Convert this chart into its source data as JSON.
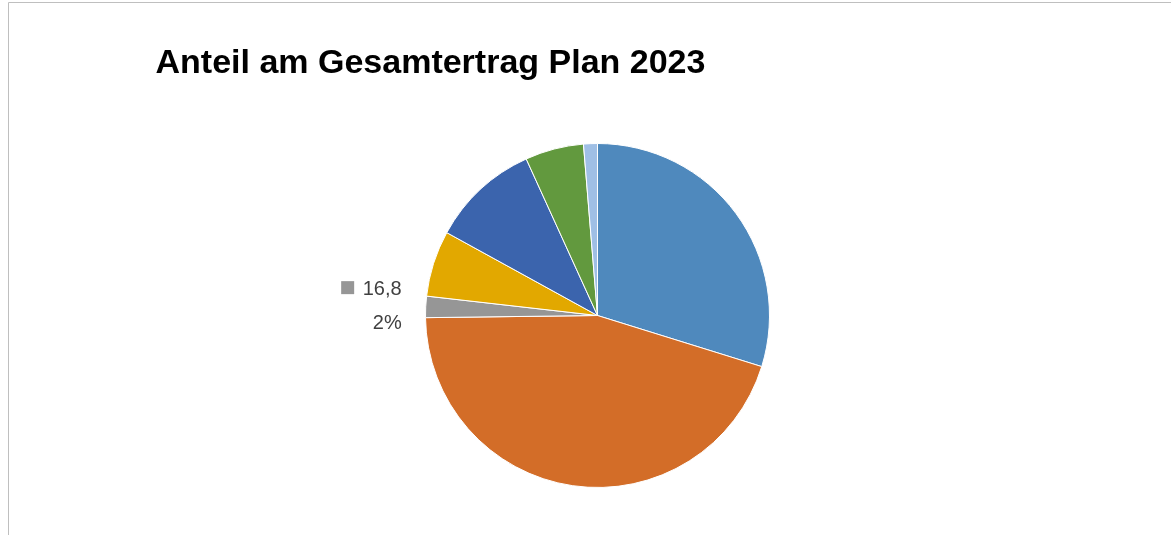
{
  "chart_data": {
    "type": "pie",
    "title": "Anteil am Gesamtertrag Plan 2023",
    "categories": [
      null,
      null,
      "16,8",
      null,
      null,
      null,
      null
    ],
    "values": [
      29.8,
      45,
      2,
      6.2,
      10.2,
      5.5,
      1.3
    ],
    "colors": [
      "#4f89bd",
      "#d36d28",
      "#969696",
      "#e2a800",
      "#3b64ad",
      "#62993e",
      "#9fbfe5"
    ],
    "value_labels": [
      null,
      null,
      "2%",
      null,
      null,
      null,
      null
    ]
  }
}
